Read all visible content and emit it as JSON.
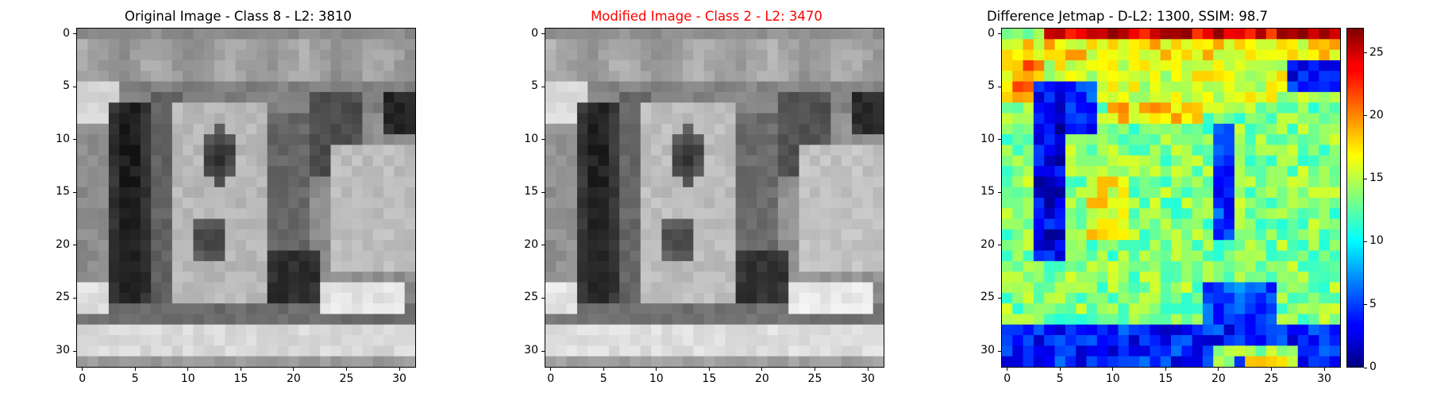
{
  "figure": {
    "panels": [
      {
        "title": "Original Image - Class 8 - L2: 3810",
        "title_color": "#000000",
        "colormap": "gray"
      },
      {
        "title": "Modified Image - Class 2 - L2: 3470",
        "title_color": "#ff0000",
        "colormap": "gray"
      },
      {
        "title": "Difference Jetmap - D-L2: 1300, SSIM: 98.7",
        "title_color": "#000000",
        "colormap": "jet"
      }
    ],
    "axis_ticks": [
      "0",
      "5",
      "10",
      "15",
      "20",
      "25",
      "30"
    ],
    "colorbar_ticks": [
      "0",
      "5",
      "10",
      "15",
      "20",
      "25"
    ]
  },
  "chart_data": [
    {
      "type": "heatmap",
      "title": "Original Image - Class 8 - L2: 3810",
      "xlim": [
        -0.5,
        31.5
      ],
      "ylim": [
        31.5,
        -0.5
      ],
      "grid": false,
      "colormap": "gray",
      "xticks": [
        0,
        5,
        10,
        15,
        20,
        25,
        30
      ],
      "yticks": [
        0,
        5,
        10,
        15,
        20,
        25,
        30
      ],
      "size": [
        32,
        32
      ]
    },
    {
      "type": "heatmap",
      "title": "Modified Image - Class 2 - L2: 3470",
      "xlim": [
        -0.5,
        31.5
      ],
      "ylim": [
        31.5,
        -0.5
      ],
      "grid": false,
      "colormap": "gray",
      "xticks": [
        0,
        5,
        10,
        15,
        20,
        25,
        30
      ],
      "yticks": [
        0,
        5,
        10,
        15,
        20,
        25,
        30
      ],
      "size": [
        32,
        32
      ]
    },
    {
      "type": "heatmap",
      "title": "Difference Jetmap - D-L2: 1300, SSIM: 98.7",
      "xlim": [
        -0.5,
        31.5
      ],
      "ylim": [
        31.5,
        -0.5
      ],
      "grid": false,
      "colormap": "jet",
      "xticks": [
        0,
        5,
        10,
        15,
        20,
        25,
        30
      ],
      "yticks": [
        0,
        5,
        10,
        15,
        20,
        25,
        30
      ],
      "colorbar": {
        "min": 0,
        "max": 27,
        "ticks": [
          0,
          5,
          10,
          15,
          20,
          25
        ]
      },
      "size": [
        32,
        32
      ]
    }
  ]
}
